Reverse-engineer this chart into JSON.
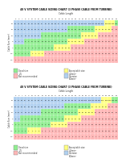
{
  "title": "48 V SYSTEM CABLE SIZING CHART (3 PHASE CABLE FROM TURBINE)",
  "subtitle": "Cable Length",
  "col_labels": [
    "5",
    "6",
    "7",
    "8",
    "9",
    "10",
    "11",
    "12",
    "13",
    "14",
    "15",
    "16",
    "17",
    "18",
    "19",
    "20",
    "21",
    "22",
    "23",
    "24",
    "25",
    "26",
    "27",
    "28",
    "29",
    "30",
    "31",
    "32",
    "33",
    "34",
    "35"
  ],
  "row_labels": [
    "25",
    "16",
    "10",
    "6",
    "4",
    "2.5",
    "1.5"
  ],
  "row_label_title": "Cable Size (mm²)",
  "green": "#90EE90",
  "yellow": "#FFFF80",
  "pink": "#FFB6B6",
  "blue": "#B0D0F0",
  "white": "#FFFFFF",
  "bg_color": "#FFFFFF",
  "chart1_patterns": [
    [
      3,
      3,
      3,
      3,
      3,
      3,
      3,
      3,
      3,
      3,
      3,
      3,
      3,
      3,
      3,
      3,
      3,
      3,
      3,
      3,
      3,
      3,
      3,
      3,
      3,
      3,
      3,
      1,
      1,
      1,
      0
    ],
    [
      3,
      3,
      3,
      3,
      3,
      3,
      3,
      3,
      3,
      3,
      3,
      3,
      3,
      3,
      3,
      3,
      0,
      0,
      0,
      0,
      0,
      0,
      0,
      0,
      1,
      1,
      1,
      1,
      1,
      2,
      2
    ],
    [
      3,
      3,
      3,
      3,
      3,
      3,
      3,
      3,
      0,
      0,
      0,
      0,
      0,
      0,
      0,
      0,
      0,
      0,
      0,
      0,
      1,
      1,
      1,
      1,
      1,
      2,
      2,
      2,
      2,
      2,
      2
    ],
    [
      3,
      3,
      3,
      0,
      0,
      0,
      0,
      0,
      0,
      0,
      0,
      0,
      0,
      0,
      0,
      0,
      1,
      1,
      1,
      1,
      1,
      2,
      2,
      2,
      2,
      2,
      2,
      2,
      2,
      2,
      2
    ],
    [
      0,
      0,
      0,
      0,
      0,
      0,
      0,
      0,
      0,
      0,
      0,
      0,
      1,
      1,
      1,
      1,
      1,
      2,
      2,
      2,
      2,
      2,
      2,
      2,
      2,
      2,
      2,
      2,
      2,
      2,
      2
    ],
    [
      0,
      0,
      0,
      0,
      0,
      1,
      1,
      1,
      1,
      2,
      2,
      2,
      2,
      2,
      2,
      2,
      2,
      2,
      2,
      2,
      2,
      2,
      2,
      2,
      2,
      2,
      2,
      2,
      2,
      2,
      2
    ],
    [
      2,
      2,
      2,
      2,
      2,
      2,
      2,
      2,
      2,
      2,
      2,
      2,
      2,
      2,
      2,
      2,
      2,
      2,
      2,
      2,
      2,
      2,
      2,
      2,
      2,
      2,
      2,
      2,
      2,
      2,
      2
    ]
  ],
  "chart2_patterns": [
    [
      3,
      3,
      3,
      3,
      3,
      3,
      3,
      3,
      3,
      3,
      3,
      3,
      3,
      3,
      3,
      3,
      3,
      3,
      3,
      3,
      3,
      3,
      3,
      3,
      3,
      3,
      1,
      1,
      1,
      0,
      0
    ],
    [
      3,
      3,
      3,
      3,
      3,
      3,
      3,
      3,
      3,
      3,
      3,
      3,
      3,
      3,
      3,
      0,
      0,
      0,
      0,
      0,
      0,
      0,
      0,
      1,
      1,
      1,
      1,
      1,
      2,
      2,
      2
    ],
    [
      3,
      3,
      3,
      3,
      3,
      3,
      3,
      3,
      0,
      0,
      0,
      0,
      0,
      0,
      0,
      0,
      0,
      0,
      0,
      1,
      1,
      1,
      1,
      1,
      2,
      2,
      2,
      2,
      2,
      2,
      2
    ],
    [
      3,
      3,
      0,
      0,
      0,
      0,
      0,
      0,
      0,
      0,
      0,
      0,
      0,
      0,
      0,
      1,
      1,
      1,
      1,
      1,
      2,
      2,
      2,
      2,
      2,
      2,
      2,
      2,
      2,
      2,
      2
    ],
    [
      0,
      0,
      0,
      0,
      0,
      0,
      0,
      0,
      0,
      0,
      0,
      1,
      1,
      1,
      1,
      1,
      2,
      2,
      2,
      2,
      2,
      2,
      2,
      2,
      2,
      2,
      2,
      2,
      2,
      2,
      2
    ],
    [
      0,
      0,
      0,
      0,
      1,
      1,
      1,
      1,
      2,
      2,
      2,
      2,
      2,
      2,
      2,
      2,
      2,
      2,
      2,
      2,
      2,
      2,
      2,
      2,
      2,
      2,
      2,
      2,
      2,
      2,
      2
    ],
    [
      2,
      2,
      2,
      2,
      2,
      2,
      2,
      2,
      2,
      2,
      2,
      2,
      2,
      2,
      2,
      2,
      2,
      2,
      2,
      2,
      2,
      2,
      2,
      2,
      2,
      2,
      2,
      2,
      2,
      2,
      2
    ]
  ],
  "legend1": [
    {
      "label": "Good size",
      "color": "#90EE90",
      "val": "2.5"
    },
    {
      "label": "Acceptable size",
      "color": "#FFFF80",
      "val": "4.0mm²"
    },
    {
      "label": "Not recommended",
      "color": "#FFB6B6",
      "val": ""
    },
    {
      "label": "Oversize",
      "color": "#B0D0F0",
      "val": "6.0mm²"
    }
  ],
  "legend2": [
    {
      "label": "Good size",
      "color": "#90EE90",
      "val": "2.5"
    },
    {
      "label": "Acceptable size",
      "color": "#FFFF80",
      "val": "4.0mm²"
    },
    {
      "label": "Not recommended",
      "color": "#FFB6B6",
      "val": ""
    },
    {
      "label": "Oversize",
      "color": "#B0D0F0",
      "val": "6.0mm²"
    }
  ],
  "cell_values_1": [
    [
      20,
      24,
      28,
      32,
      36,
      40,
      44,
      48,
      52,
      56,
      60,
      64,
      68,
      72,
      76,
      80,
      84,
      88,
      92,
      96,
      100,
      104,
      108,
      112,
      116,
      120,
      124,
      128,
      132,
      136,
      140
    ],
    [
      13,
      15,
      18,
      20,
      23,
      26,
      28,
      31,
      33,
      36,
      38,
      41,
      43,
      46,
      48,
      51,
      54,
      56,
      59,
      61,
      64,
      66,
      69,
      72,
      74,
      77,
      79,
      82,
      84,
      87,
      90
    ],
    [
      8,
      10,
      11,
      13,
      14,
      16,
      18,
      19,
      21,
      22,
      24,
      26,
      27,
      29,
      30,
      32,
      34,
      35,
      37,
      38,
      40,
      42,
      43,
      45,
      46,
      48,
      50,
      51,
      53,
      54,
      56
    ],
    [
      5,
      6,
      7,
      8,
      9,
      10,
      11,
      12,
      13,
      13,
      14,
      15,
      16,
      17,
      18,
      19,
      20,
      21,
      22,
      23,
      24,
      25,
      26,
      27,
      28,
      29,
      30,
      31,
      32,
      33,
      34
    ],
    [
      3,
      4,
      4,
      5,
      6,
      6,
      7,
      8,
      8,
      9,
      10,
      10,
      11,
      12,
      12,
      13,
      13,
      14,
      15,
      15,
      16,
      17,
      17,
      18,
      18,
      19,
      20,
      20,
      21,
      22,
      22
    ],
    [
      2,
      2,
      3,
      3,
      4,
      4,
      4,
      5,
      5,
      6,
      6,
      6,
      7,
      7,
      8,
      8,
      8,
      9,
      9,
      10,
      10,
      10,
      11,
      11,
      12,
      12,
      12,
      13,
      13,
      14,
      14
    ],
    [
      1,
      1,
      2,
      2,
      2,
      2,
      3,
      3,
      3,
      3,
      4,
      4,
      4,
      4,
      5,
      5,
      5,
      5,
      6,
      6,
      6,
      6,
      7,
      7,
      7,
      7,
      8,
      8,
      8,
      8,
      9
    ]
  ],
  "cell_values_2": [
    [
      20,
      24,
      28,
      32,
      36,
      40,
      44,
      48,
      52,
      56,
      60,
      64,
      68,
      72,
      76,
      80,
      84,
      88,
      92,
      96,
      100,
      104,
      108,
      112,
      116,
      120,
      124,
      128,
      132,
      136,
      140
    ],
    [
      13,
      15,
      18,
      20,
      23,
      26,
      28,
      31,
      33,
      36,
      38,
      41,
      43,
      46,
      48,
      51,
      54,
      56,
      59,
      61,
      64,
      66,
      69,
      72,
      74,
      77,
      79,
      82,
      84,
      87,
      90
    ],
    [
      8,
      10,
      11,
      13,
      14,
      16,
      18,
      19,
      21,
      22,
      24,
      26,
      27,
      29,
      30,
      32,
      34,
      35,
      37,
      38,
      40,
      42,
      43,
      45,
      46,
      48,
      50,
      51,
      53,
      54,
      56
    ],
    [
      5,
      6,
      7,
      8,
      9,
      10,
      11,
      12,
      13,
      13,
      14,
      15,
      16,
      17,
      18,
      19,
      20,
      21,
      22,
      23,
      24,
      25,
      26,
      27,
      28,
      29,
      30,
      31,
      32,
      33,
      34
    ],
    [
      3,
      4,
      4,
      5,
      6,
      6,
      7,
      8,
      8,
      9,
      10,
      10,
      11,
      12,
      12,
      13,
      13,
      14,
      15,
      15,
      16,
      17,
      17,
      18,
      18,
      19,
      20,
      20,
      21,
      22,
      22
    ],
    [
      2,
      2,
      3,
      3,
      4,
      4,
      4,
      5,
      5,
      6,
      6,
      6,
      7,
      7,
      8,
      8,
      8,
      9,
      9,
      10,
      10,
      10,
      11,
      11,
      12,
      12,
      12,
      13,
      13,
      14,
      14
    ],
    [
      1,
      1,
      2,
      2,
      2,
      2,
      3,
      3,
      3,
      3,
      4,
      4,
      4,
      4,
      5,
      5,
      5,
      5,
      6,
      6,
      6,
      6,
      7,
      7,
      7,
      7,
      8,
      8,
      8,
      8,
      9
    ]
  ]
}
